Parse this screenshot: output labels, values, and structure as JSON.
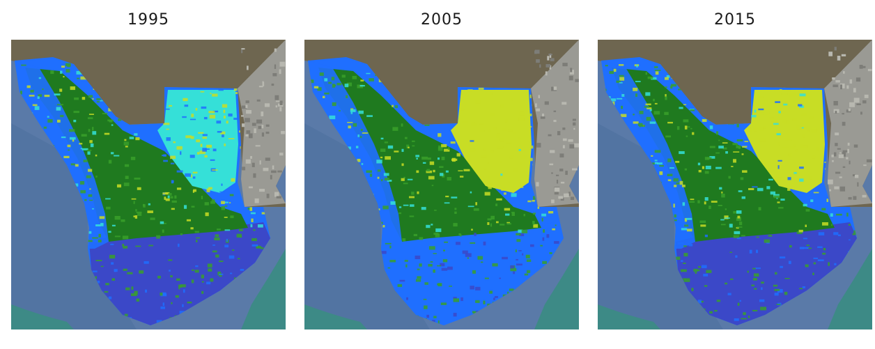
{
  "panels": [
    {
      "title": "1995",
      "key": "p1995"
    },
    {
      "title": "2005",
      "key": "p2005"
    },
    {
      "title": "2015",
      "key": "p2015"
    }
  ],
  "colors": {
    "ocean": "#5a7aa8",
    "ocean_deep": "#4d6f9f",
    "land": "#6e6650",
    "land_dark": "#5e5744",
    "urban": "#9a9a94",
    "reef": "#3d8a86",
    "water_deep": "#3b48c8",
    "water": "#1f6fff",
    "cyan": "#35e0d8",
    "yellow": "#c8dd25",
    "green_dark": "#1f7a1f",
    "green": "#3aa02a"
  }
}
